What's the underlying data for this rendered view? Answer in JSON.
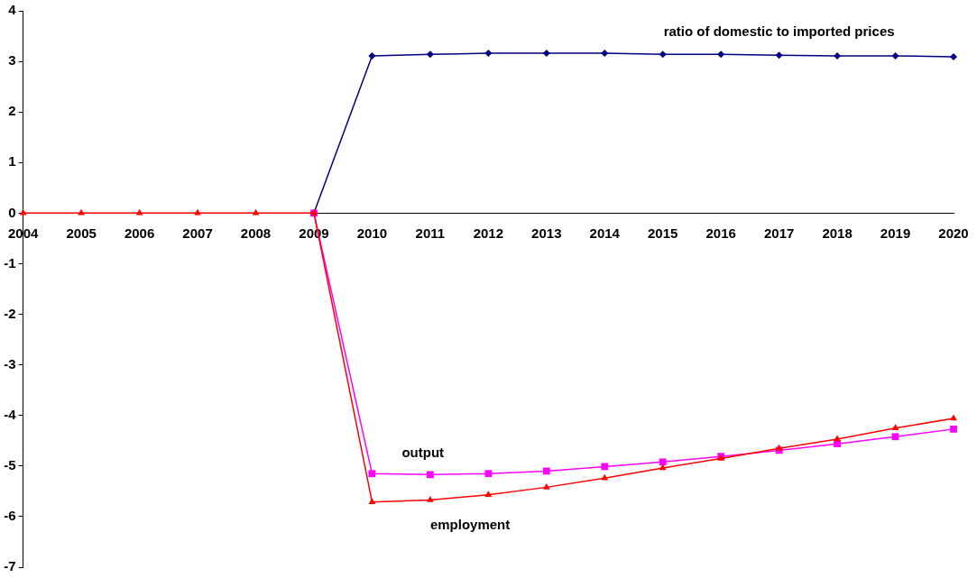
{
  "chart_data": {
    "type": "line",
    "categories": [
      "2004",
      "2005",
      "2006",
      "2007",
      "2008",
      "2009",
      "2010",
      "2011",
      "2012",
      "2013",
      "2014",
      "2015",
      "2016",
      "2017",
      "2018",
      "2019",
      "2020"
    ],
    "series": [
      {
        "name": "ratio of domestic to imported prices",
        "color": "#000080",
        "marker": "diamond",
        "values": [
          null,
          null,
          null,
          null,
          null,
          0,
          3.11,
          3.14,
          3.16,
          3.16,
          3.16,
          3.14,
          3.14,
          3.12,
          3.11,
          3.11,
          3.09
        ]
      },
      {
        "name": "output",
        "color": "#ff00ff",
        "marker": "square",
        "values": [
          null,
          null,
          null,
          null,
          null,
          0,
          -5.15,
          -5.17,
          -5.15,
          -5.1,
          -5.01,
          -4.92,
          -4.81,
          -4.69,
          -4.56,
          -4.42,
          -4.27
        ]
      },
      {
        "name": "employment",
        "color": "#ff0000",
        "marker": "triangle",
        "values": [
          0,
          0,
          0,
          0,
          0,
          0,
          -5.71,
          -5.67,
          -5.57,
          -5.42,
          -5.24,
          -5.04,
          -4.85,
          -4.65,
          -4.47,
          -4.25,
          -4.06
        ]
      }
    ],
    "ylim": [
      -7,
      4
    ],
    "yticks": [
      -7,
      -6,
      -5,
      -4,
      -3,
      -2,
      -1,
      0,
      1,
      2,
      3,
      4
    ],
    "grid": false,
    "legend": false
  }
}
